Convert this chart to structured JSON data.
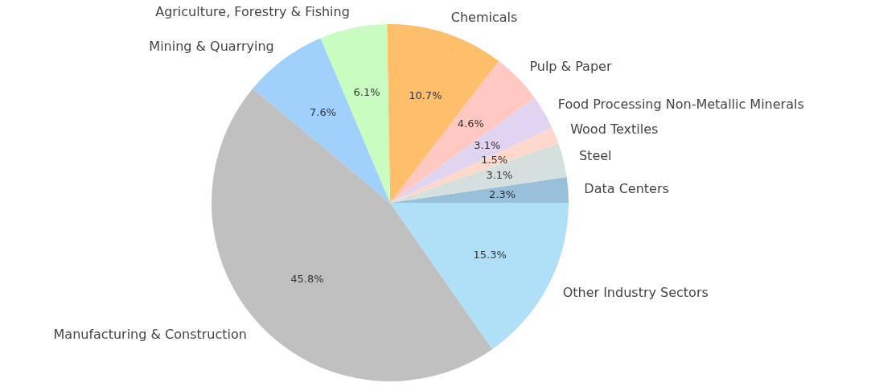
{
  "chart_data": {
    "type": "pie",
    "categories": [
      "Data Centers",
      "Steel",
      "Wood Textiles",
      "Food Processing Non-Metallic Minerals",
      "Pulp & Paper",
      "Chemicals",
      "Agriculture, Forestry & Fishing",
      "Mining & Quarrying",
      "Manufacturing & Construction",
      "Other Industry Sectors"
    ],
    "values": [
      2.3,
      3.1,
      1.5,
      3.1,
      4.6,
      10.7,
      6.1,
      7.6,
      45.8,
      15.3
    ],
    "value_labels": [
      "2.3%",
      "3.1%",
      "1.5%",
      "3.1%",
      "4.6%",
      "10.7%",
      "6.1%",
      "7.6%",
      "45.8%",
      "15.3%"
    ],
    "colors": [
      "#99c0db",
      "#d5e0de",
      "#ffd8cc",
      "#e0d4f0",
      "#ffc8c0",
      "#ffbe6a",
      "#c8fcc0",
      "#a0d0fc",
      "#c0c0c0",
      "#b0e0f8"
    ]
  }
}
